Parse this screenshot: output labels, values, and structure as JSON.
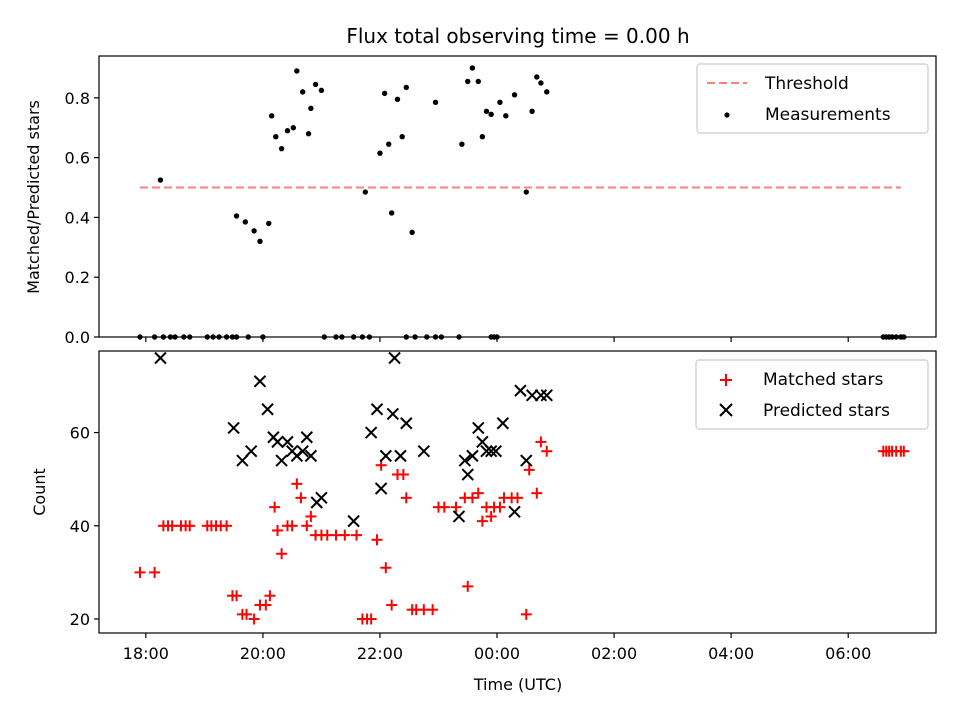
{
  "chart_data": [
    {
      "type": "scatter",
      "title": "Flux total observing time = 0.00 h",
      "ylabel": "Matched/Predicted stars",
      "ylim": [
        0,
        0.94
      ],
      "yticks": [
        0.0,
        0.2,
        0.4,
        0.6,
        0.8
      ],
      "ytick_labels": [
        "0.0",
        "0.2",
        "0.4",
        "0.6",
        "0.8"
      ],
      "xlim": [
        17.2,
        31.5
      ],
      "xticks": [
        18,
        20,
        22,
        24,
        26,
        28,
        30
      ],
      "legend_position": "top-right",
      "threshold": {
        "name": "Threshold",
        "value": 0.5,
        "x_range": [
          17.9,
          30.9
        ],
        "color": "#ff7f7f"
      },
      "series": [
        {
          "name": "Measurements",
          "color": "#000000",
          "marker": "dot",
          "points": [
            [
              17.9,
              0
            ],
            [
              18.15,
              0
            ],
            [
              18.3,
              0
            ],
            [
              18.42,
              0
            ],
            [
              18.5,
              0
            ],
            [
              18.65,
              0
            ],
            [
              18.75,
              0
            ],
            [
              19.05,
              0
            ],
            [
              19.15,
              0
            ],
            [
              19.25,
              0
            ],
            [
              19.38,
              0
            ],
            [
              19.48,
              0
            ],
            [
              19.55,
              0
            ],
            [
              19.75,
              0
            ],
            [
              20.0,
              0
            ],
            [
              21.05,
              0
            ],
            [
              21.25,
              0
            ],
            [
              21.35,
              0
            ],
            [
              21.55,
              0
            ],
            [
              21.7,
              0
            ],
            [
              21.82,
              0
            ],
            [
              22.45,
              0
            ],
            [
              22.6,
              0
            ],
            [
              22.8,
              0
            ],
            [
              22.95,
              0
            ],
            [
              23.05,
              0
            ],
            [
              23.35,
              0
            ],
            [
              23.9,
              0
            ],
            [
              23.95,
              0
            ],
            [
              24.0,
              0
            ],
            [
              30.6,
              0
            ],
            [
              30.65,
              0
            ],
            [
              30.7,
              0
            ],
            [
              30.75,
              0
            ],
            [
              30.82,
              0
            ],
            [
              30.9,
              0
            ],
            [
              30.95,
              0
            ],
            [
              18.25,
              0.525
            ],
            [
              19.55,
              0.405
            ],
            [
              19.7,
              0.385
            ],
            [
              19.85,
              0.355
            ],
            [
              19.95,
              0.32
            ],
            [
              20.1,
              0.38
            ],
            [
              20.15,
              0.74
            ],
            [
              20.22,
              0.67
            ],
            [
              20.32,
              0.63
            ],
            [
              20.42,
              0.69
            ],
            [
              20.52,
              0.7
            ],
            [
              20.58,
              0.89
            ],
            [
              20.68,
              0.82
            ],
            [
              20.78,
              0.68
            ],
            [
              20.82,
              0.765
            ],
            [
              20.9,
              0.845
            ],
            [
              21.0,
              0.825
            ],
            [
              21.75,
              0.485
            ],
            [
              22.0,
              0.615
            ],
            [
              22.08,
              0.815
            ],
            [
              22.15,
              0.645
            ],
            [
              22.2,
              0.415
            ],
            [
              22.3,
              0.795
            ],
            [
              22.38,
              0.67
            ],
            [
              22.45,
              0.835
            ],
            [
              22.55,
              0.35
            ],
            [
              22.95,
              0.785
            ],
            [
              23.4,
              0.645
            ],
            [
              23.5,
              0.855
            ],
            [
              23.58,
              0.9
            ],
            [
              23.68,
              0.855
            ],
            [
              23.75,
              0.67
            ],
            [
              23.82,
              0.755
            ],
            [
              23.9,
              0.745
            ],
            [
              24.05,
              0.785
            ],
            [
              24.15,
              0.74
            ],
            [
              24.3,
              0.81
            ],
            [
              24.5,
              0.485
            ],
            [
              24.6,
              0.755
            ],
            [
              24.68,
              0.87
            ],
            [
              24.75,
              0.85
            ],
            [
              24.85,
              0.82
            ]
          ]
        }
      ]
    },
    {
      "type": "scatter",
      "xlabel": "Time (UTC)",
      "ylabel": "Count",
      "ylim": [
        17,
        77.5
      ],
      "yticks": [
        20,
        40,
        60
      ],
      "ytick_labels": [
        "20",
        "40",
        "60"
      ],
      "xlim": [
        17.2,
        31.5
      ],
      "xticks": [
        18,
        20,
        22,
        24,
        26,
        28,
        30
      ],
      "xtick_labels": [
        "18:00",
        "20:00",
        "22:00",
        "00:00",
        "02:00",
        "04:00",
        "06:00"
      ],
      "legend_position": "top-right",
      "series": [
        {
          "name": "Matched stars",
          "color": "#ff0000",
          "marker": "plus",
          "points": [
            [
              17.9,
              30
            ],
            [
              18.15,
              30
            ],
            [
              18.3,
              40
            ],
            [
              18.38,
              40
            ],
            [
              18.45,
              40
            ],
            [
              18.6,
              40
            ],
            [
              18.68,
              40
            ],
            [
              18.75,
              40
            ],
            [
              19.05,
              40
            ],
            [
              19.12,
              40
            ],
            [
              19.2,
              40
            ],
            [
              19.28,
              40
            ],
            [
              19.38,
              40
            ],
            [
              19.48,
              25
            ],
            [
              19.55,
              25
            ],
            [
              19.65,
              21
            ],
            [
              19.72,
              21
            ],
            [
              19.85,
              20
            ],
            [
              19.95,
              23
            ],
            [
              20.05,
              23
            ],
            [
              20.12,
              25
            ],
            [
              20.2,
              44
            ],
            [
              20.25,
              39
            ],
            [
              20.32,
              34
            ],
            [
              20.42,
              40
            ],
            [
              20.5,
              40
            ],
            [
              20.58,
              49
            ],
            [
              20.65,
              46
            ],
            [
              20.75,
              40
            ],
            [
              20.82,
              42
            ],
            [
              20.9,
              38
            ],
            [
              21.0,
              38
            ],
            [
              21.1,
              38
            ],
            [
              21.25,
              38
            ],
            [
              21.4,
              38
            ],
            [
              21.6,
              38
            ],
            [
              21.7,
              20
            ],
            [
              21.78,
              20
            ],
            [
              21.85,
              20
            ],
            [
              21.95,
              37
            ],
            [
              22.02,
              53
            ],
            [
              22.1,
              31
            ],
            [
              22.2,
              23
            ],
            [
              22.3,
              51
            ],
            [
              22.4,
              51
            ],
            [
              22.45,
              46
            ],
            [
              22.55,
              22
            ],
            [
              22.62,
              22
            ],
            [
              22.75,
              22
            ],
            [
              22.9,
              22
            ],
            [
              23.0,
              44
            ],
            [
              23.1,
              44
            ],
            [
              23.3,
              44
            ],
            [
              23.45,
              46
            ],
            [
              23.5,
              27
            ],
            [
              23.58,
              46
            ],
            [
              23.68,
              47
            ],
            [
              23.75,
              41
            ],
            [
              23.82,
              44
            ],
            [
              23.9,
              42
            ],
            [
              23.95,
              44
            ],
            [
              24.05,
              44
            ],
            [
              24.12,
              46
            ],
            [
              24.25,
              46
            ],
            [
              24.35,
              46
            ],
            [
              24.5,
              21
            ],
            [
              24.55,
              52
            ],
            [
              24.68,
              47
            ],
            [
              24.75,
              58
            ],
            [
              24.85,
              56
            ],
            [
              30.6,
              56
            ],
            [
              30.65,
              56
            ],
            [
              30.7,
              56
            ],
            [
              30.75,
              56
            ],
            [
              30.82,
              56
            ],
            [
              30.9,
              56
            ],
            [
              30.95,
              56
            ]
          ]
        },
        {
          "name": "Predicted stars",
          "color": "#000000",
          "marker": "x",
          "points": [
            [
              18.25,
              76
            ],
            [
              19.5,
              61
            ],
            [
              19.65,
              54
            ],
            [
              19.8,
              56
            ],
            [
              19.95,
              71
            ],
            [
              20.08,
              65
            ],
            [
              20.18,
              59
            ],
            [
              20.25,
              58
            ],
            [
              20.32,
              54
            ],
            [
              20.42,
              58
            ],
            [
              20.5,
              56
            ],
            [
              20.58,
              55
            ],
            [
              20.68,
              56
            ],
            [
              20.75,
              59
            ],
            [
              20.82,
              55
            ],
            [
              20.92,
              45
            ],
            [
              21.0,
              46
            ],
            [
              21.55,
              41
            ],
            [
              21.85,
              60
            ],
            [
              21.95,
              65
            ],
            [
              22.02,
              48
            ],
            [
              22.1,
              55
            ],
            [
              22.22,
              64
            ],
            [
              22.25,
              76
            ],
            [
              22.35,
              55
            ],
            [
              22.45,
              62
            ],
            [
              22.75,
              56
            ],
            [
              23.35,
              42
            ],
            [
              23.45,
              54
            ],
            [
              23.5,
              51
            ],
            [
              23.58,
              55
            ],
            [
              23.68,
              61
            ],
            [
              23.75,
              58
            ],
            [
              23.82,
              56
            ],
            [
              23.9,
              56
            ],
            [
              23.98,
              56
            ],
            [
              24.1,
              62
            ],
            [
              24.3,
              43
            ],
            [
              24.4,
              69
            ],
            [
              24.5,
              54
            ],
            [
              24.6,
              68
            ],
            [
              24.75,
              68
            ],
            [
              24.85,
              68
            ]
          ]
        }
      ]
    }
  ]
}
